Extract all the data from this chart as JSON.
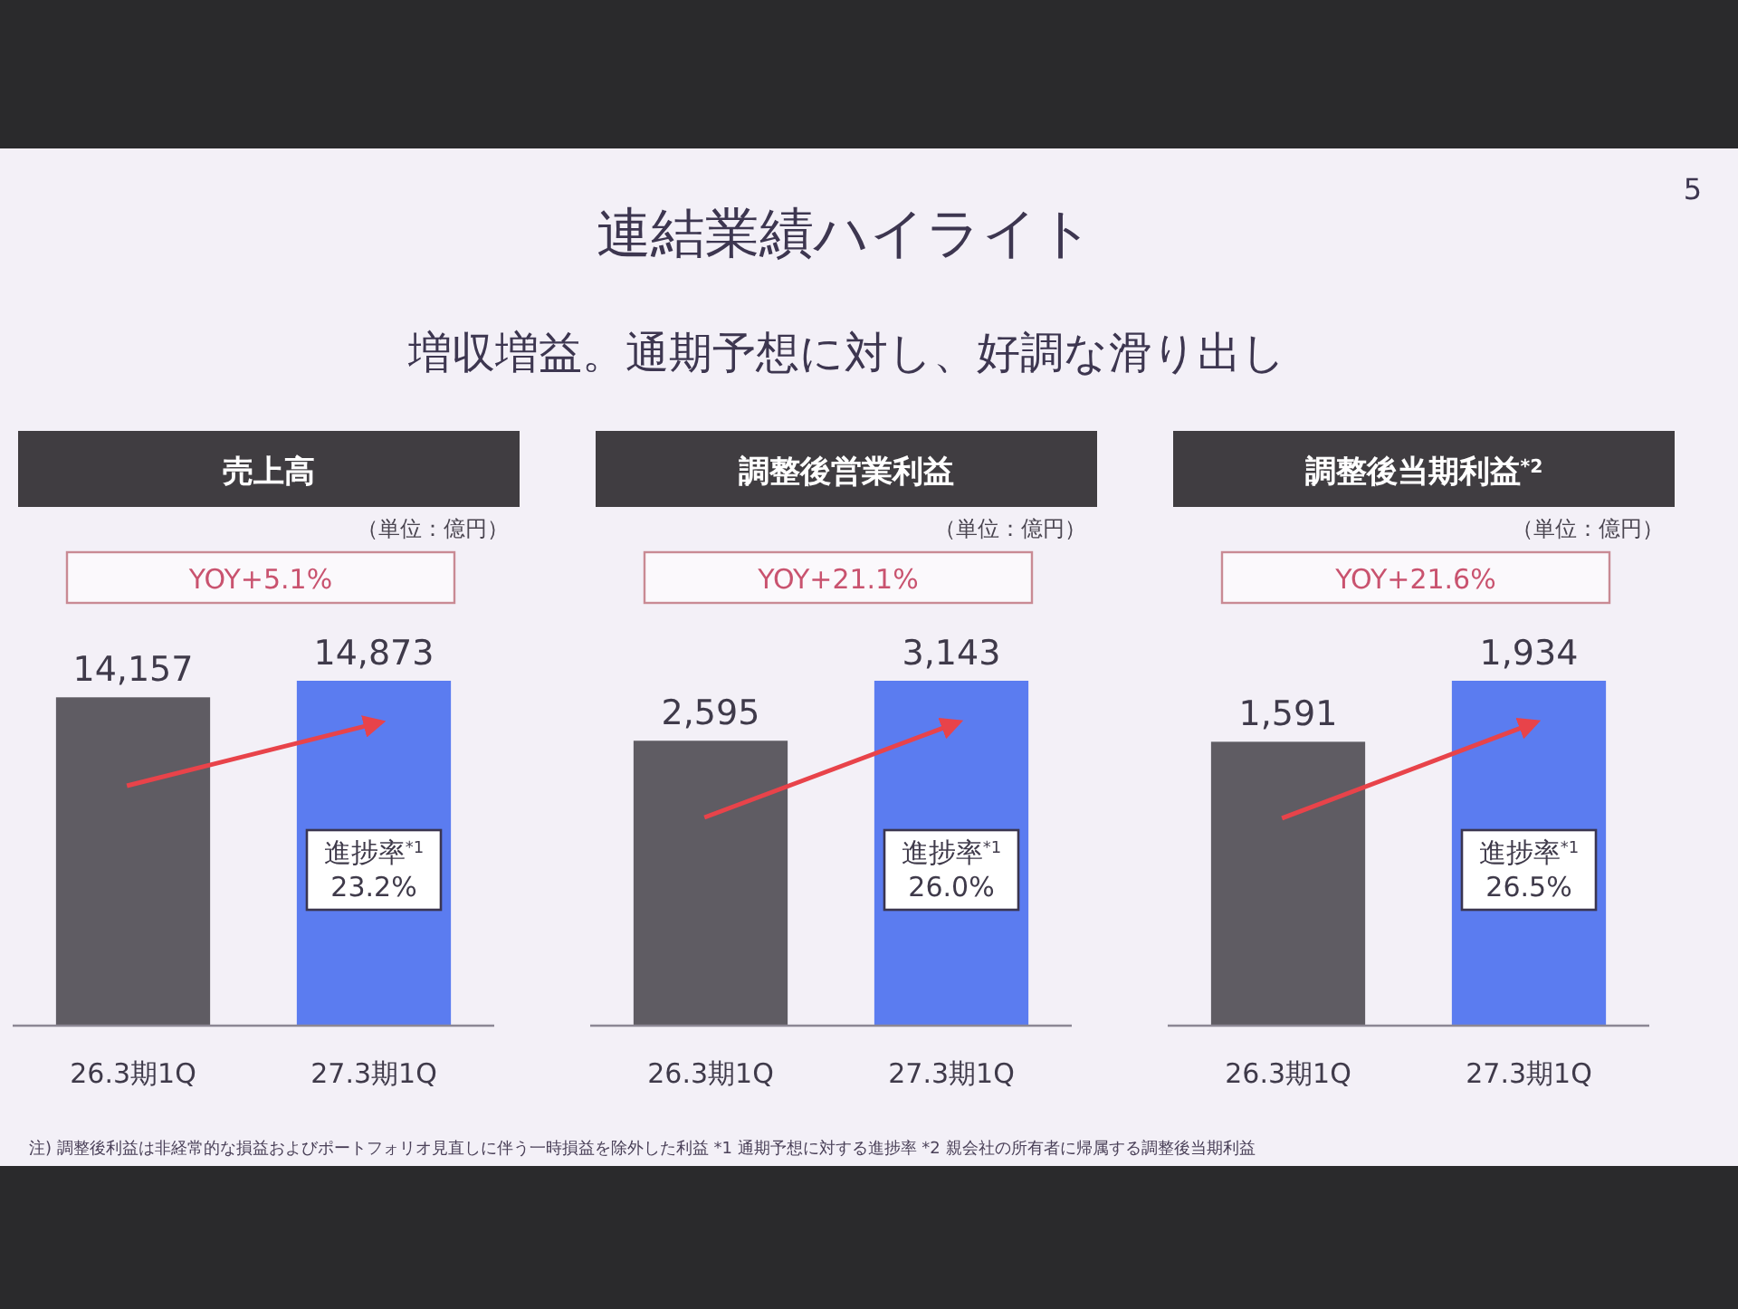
{
  "chart_data": [
    {
      "type": "bar",
      "title": "売上高",
      "categories": [
        "26.3期1Q",
        "27.3期1Q"
      ],
      "values": [
        14157,
        14873
      ],
      "value_labels": [
        "14,157",
        "14,873"
      ],
      "colors": [
        "#5f5c63",
        "#5b7cf0"
      ],
      "annotations": [
        "（単位：億円）",
        "YOY+5.1%",
        "進捗率$^{*1}$\n23.2%",
        "連結業績ハイライト",
        "増収増益。通期予想に対し、好調な滑り出し",
        "5",
        "注) 調整後利益は非経常的な損益およびポートフォリオ見直しに伴う一時損益を除外した利益 *1 通期予想に対する進捗率 *2 親会社の所有者に帰属する調整後当期利益"
      ]
    },
    {
      "type": "bar",
      "title": "調整後営業利益",
      "categories": [
        "26.3期1Q",
        "27.3期1Q"
      ],
      "values": [
        2595,
        3143
      ],
      "value_labels": [
        "2,595",
        "3,143"
      ],
      "colors": [
        "#5f5c63",
        "#5b7cf0"
      ],
      "annotations": [
        "（単位：億円）",
        "YOY+21.1%",
        "進捗率$^{*1}$\n26.0%"
      ]
    },
    {
      "type": "bar",
      "title": "調整後当期利益$^{*2}$",
      "categories": [
        "26.3期1Q",
        "27.3期1Q"
      ],
      "values": [
        1591,
        1934
      ],
      "value_labels": [
        "1,591",
        "1,934"
      ],
      "colors": [
        "#5f5c63",
        "#5b7cf0"
      ],
      "annotations": [
        "（単位：億円）",
        "YOY+21.6%",
        "進捗率$^{*1}$\n26.5%"
      ]
    }
  ]
}
